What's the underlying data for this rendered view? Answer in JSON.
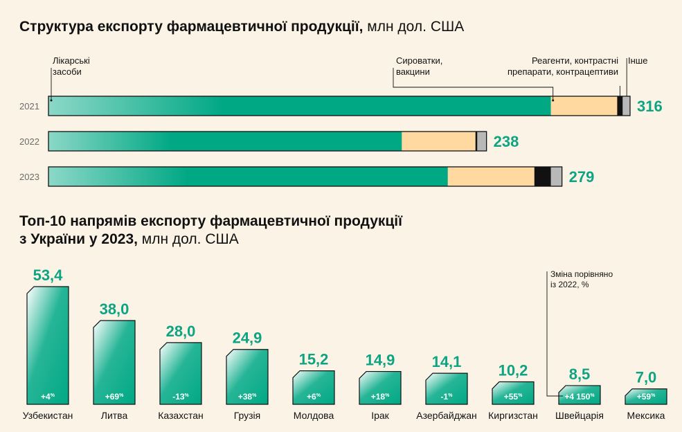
{
  "chart1": {
    "title": "Структура експорту фармацевтичної продукції,",
    "unit": "млн дол. США"
  },
  "chart2": {
    "title_line1": "Топ-10 напрямів експорту фармацевтичної продукції",
    "title_line2": "з України у 2023,",
    "unit": "млн дол. США",
    "note": [
      "Зміна порівняно",
      "із 2022, %"
    ]
  },
  "colors": {
    "medicines": "#00a884",
    "serums": "#ffd9a0",
    "reagents": "#111111",
    "other": "#b8b8b8",
    "value_text": "#0ea383"
  },
  "chart_data": [
    {
      "type": "bar",
      "orientation": "horizontal-stacked",
      "categories": [
        "2021",
        "2022",
        "2023"
      ],
      "totals": [
        "316",
        "238",
        "279"
      ],
      "series": [
        {
          "name": [
            "Лікарські",
            "засоби"
          ],
          "color": "#00a884",
          "values": [
            273,
            192,
            217
          ]
        },
        {
          "name": [
            "Сироватки,",
            "вакцини"
          ],
          "color": "#ffd9a0",
          "values": [
            36,
            40,
            47
          ]
        },
        {
          "name": [
            "Реагенти, контрастні",
            "препарати, контрацептиви"
          ],
          "color": "#111111",
          "values": [
            3,
            1,
            9
          ]
        },
        {
          "name": [
            "Інше"
          ],
          "color": "#b8b8b8",
          "values": [
            4,
            5,
            6
          ]
        }
      ],
      "xlim": [
        0,
        316
      ]
    },
    {
      "type": "bar",
      "categories": [
        "Узбекистан",
        "Литва",
        "Казахстан",
        "Грузія",
        "Молдова",
        "Ірак",
        "Азербайджан",
        "Киргизстан",
        "Швейцарія",
        "Мексика"
      ],
      "values": [
        53.4,
        38.0,
        28.0,
        24.9,
        15.2,
        14.9,
        14.1,
        10.2,
        8.5,
        7.0
      ],
      "value_labels": [
        "53,4",
        "38,0",
        "28,0",
        "24,9",
        "15,2",
        "14,9",
        "14,1",
        "10,2",
        "8,5",
        "7,0"
      ],
      "changes": [
        "+4",
        "+69",
        "-13",
        "+38",
        "+6",
        "+18",
        "-1",
        "+55",
        "+4 150",
        "+59"
      ],
      "change_unit": "%",
      "ylim": [
        0,
        53.4
      ]
    }
  ]
}
